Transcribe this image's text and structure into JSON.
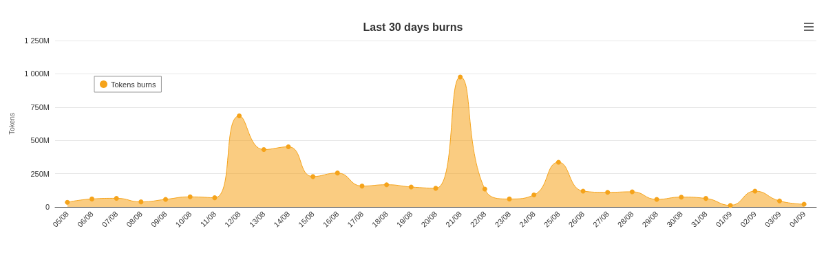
{
  "chart_data": {
    "type": "area",
    "title": "Last 30 days burns",
    "ylabel": "Tokens",
    "categories": [
      "05/08",
      "06/08",
      "07/08",
      "08/08",
      "09/08",
      "10/08",
      "11/08",
      "12/08",
      "13/08",
      "14/08",
      "15/08",
      "16/08",
      "17/08",
      "18/08",
      "19/08",
      "20/08",
      "21/08",
      "22/08",
      "23/08",
      "24/08",
      "25/08",
      "26/08",
      "27/08",
      "28/08",
      "29/08",
      "30/08",
      "31/08",
      "01/09",
      "02/09",
      "03/09",
      "04/09"
    ],
    "series": [
      {
        "name": "Tokens burns",
        "color": "#f5a31a",
        "values": [
          35,
          60,
          65,
          38,
          57,
          76,
          69,
          684,
          431,
          452,
          228,
          255,
          157,
          167,
          150,
          140,
          976,
          134,
          60,
          90,
          336,
          119,
          110,
          114,
          57,
          74,
          64,
          12,
          119,
          45,
          21
        ]
      }
    ],
    "ylim": [
      0,
      1250
    ],
    "yticks": [
      {
        "value": 0,
        "label": "0"
      },
      {
        "value": 250,
        "label": "250M"
      },
      {
        "value": 500,
        "label": "500M"
      },
      {
        "value": 750,
        "label": "750M"
      },
      {
        "value": 1000,
        "label": "1 000M"
      },
      {
        "value": 1250,
        "label": "1 250M"
      }
    ],
    "grid": "y",
    "legend": "top left",
    "marker": "circle",
    "line_style": "solid"
  }
}
